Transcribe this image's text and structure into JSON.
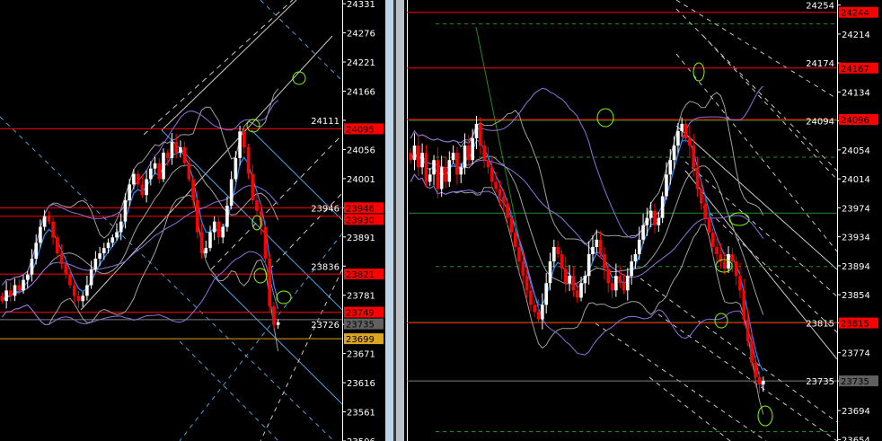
{
  "chart_data": [
    {
      "type": "candlestick",
      "panel": "left",
      "title": "",
      "y_ticks": [
        24331,
        24276,
        24221,
        24166,
        24111,
        24056,
        24001,
        23946,
        23891,
        23836,
        23781,
        23726,
        23671,
        23616,
        23561,
        23506
      ],
      "ylim": [
        23506,
        24338
      ],
      "closes": [
        23770,
        23790,
        23780,
        23800,
        23790,
        23810,
        23820,
        23850,
        23880,
        23910,
        23930,
        23920,
        23890,
        23860,
        23840,
        23820,
        23800,
        23780,
        23770,
        23780,
        23800,
        23830,
        23850,
        23860,
        23870,
        23880,
        23890,
        23900,
        23920,
        23960,
        23990,
        24010,
        23990,
        23970,
        24000,
        24020,
        24030,
        24000,
        24050,
        24040,
        24070,
        24050,
        24060,
        24030,
        24000,
        23960,
        23900,
        23860,
        23870,
        23900,
        23920,
        23890,
        23910,
        23950,
        24000,
        24040,
        24090,
        24060,
        24010,
        23960,
        23940,
        23910,
        23850,
        23760,
        23725,
        23730
      ],
      "levels": [
        {
          "price": 24095,
          "color": "#ff0000",
          "label": "24095"
        },
        {
          "price": 23946,
          "color": "#ff0000",
          "label": "23946"
        },
        {
          "price": 23930,
          "color": "#ff0000",
          "label": "23930"
        },
        {
          "price": 23821,
          "color": "#ff0000",
          "label": "23821"
        },
        {
          "price": 23749,
          "color": "#ff0000",
          "label": "23749"
        },
        {
          "price": 23735,
          "color": "#808080",
          "label": "23735"
        },
        {
          "price": 23699,
          "color": "#e0a020",
          "label": "23699"
        }
      ]
    },
    {
      "type": "candlestick",
      "panel": "right",
      "title": "",
      "y_ticks": [
        24254,
        24214,
        24174,
        24134,
        24094,
        24054,
        24014,
        23974,
        23934,
        23894,
        23854,
        23815,
        23774,
        23735,
        23694,
        23654
      ],
      "ylim": [
        23652,
        24261
      ],
      "closes": [
        24040,
        24060,
        24030,
        24050,
        24010,
        24020,
        24040,
        24000,
        24030,
        24010,
        24040,
        24050,
        24020,
        24030,
        24060,
        24040,
        24070,
        24090,
        24060,
        24040,
        24030,
        24010,
        24000,
        23990,
        23980,
        23960,
        23940,
        23920,
        23900,
        23880,
        23860,
        23840,
        23830,
        23820,
        23840,
        23870,
        23900,
        23920,
        23910,
        23890,
        23870,
        23880,
        23860,
        23850,
        23870,
        23880,
        23910,
        23920,
        23930,
        23910,
        23890,
        23870,
        23860,
        23880,
        23870,
        23860,
        23880,
        23900,
        23910,
        23930,
        23950,
        23960,
        23970,
        23950,
        23960,
        23990,
        24020,
        24040,
        24060,
        24080,
        24090,
        24070,
        24060,
        24030,
        24000,
        23980,
        23960,
        23940,
        23920,
        23910,
        23900,
        23890,
        23910,
        23900,
        23880,
        23860,
        23820,
        23790,
        23760,
        23740,
        23730,
        23735
      ],
      "levels": [
        {
          "price": 24244,
          "color": "#ff0000",
          "label": "24244"
        },
        {
          "price": 24167,
          "color": "#ff0000",
          "label": "24167"
        },
        {
          "price": 24096,
          "color": "#ff0000",
          "label": "24096"
        },
        {
          "price": 23815,
          "color": "#ff0000",
          "label": "23815"
        },
        {
          "price": 23735,
          "color": "#808080",
          "label": "23735"
        }
      ],
      "green_levels": [
        24096,
        23968,
        23817
      ],
      "green_dashed_levels": [
        24228,
        24044,
        23893,
        23665
      ]
    }
  ],
  "colors": {
    "bull": "#ffffff",
    "bear": "#ff0000",
    "ma": "#1e90ff",
    "band_fast": "#a0a0a0",
    "band_slow": "#9370db",
    "marker": "#7fff00",
    "axis": "#ffffff"
  }
}
